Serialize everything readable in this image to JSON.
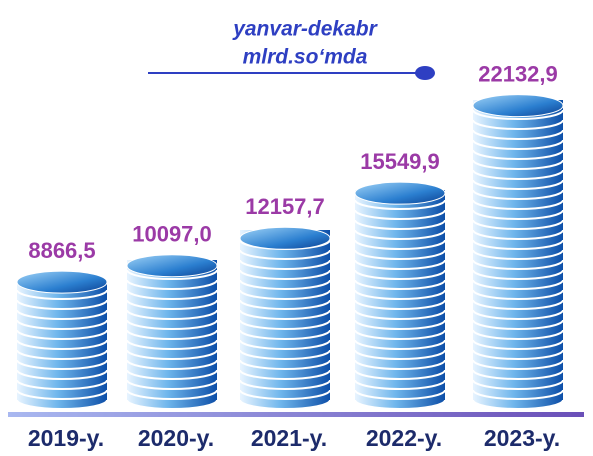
{
  "chart_data": {
    "type": "bar",
    "title": "yanvar-dekabr",
    "subtitle": "mlrd.so‘mda",
    "categories": [
      "2019-y.",
      "2020-y.",
      "2021-y.",
      "2022-y.",
      "2023-y."
    ],
    "values": [
      8866.5,
      10097.0,
      12157.7,
      15549.9,
      22132.9
    ],
    "value_labels": [
      "8866,5",
      "10097,0",
      "12157,7",
      "15549,9",
      "22132,9"
    ],
    "color": "#1f6fc4"
  }
}
